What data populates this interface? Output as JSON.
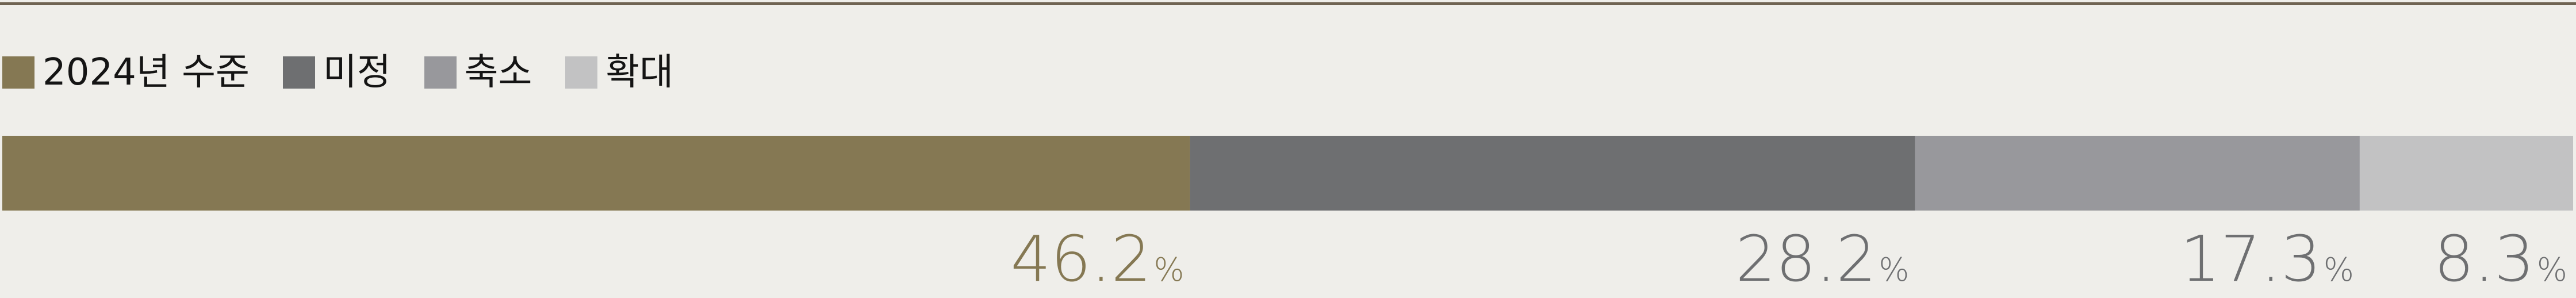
{
  "chart_data": {
    "type": "bar",
    "orientation": "horizontal-stacked-100",
    "series": [
      {
        "name": "2024년 수준",
        "value": 46.2,
        "color": "#857853",
        "label_color": "#857853"
      },
      {
        "name": "미정",
        "value": 28.2,
        "color": "#6e6f71",
        "label_color": "#6e6f71"
      },
      {
        "name": "축소",
        "value": 17.3,
        "color": "#98989c",
        "label_color": "#6e6f71"
      },
      {
        "name": "확대",
        "value": 8.3,
        "color": "#c2c2c3",
        "label_color": "#6e6f71"
      }
    ],
    "unit": "%",
    "legend_position": "top-left",
    "grid": false
  },
  "colors": {
    "background": "#efeeea",
    "top_rule": "#6f6352"
  }
}
